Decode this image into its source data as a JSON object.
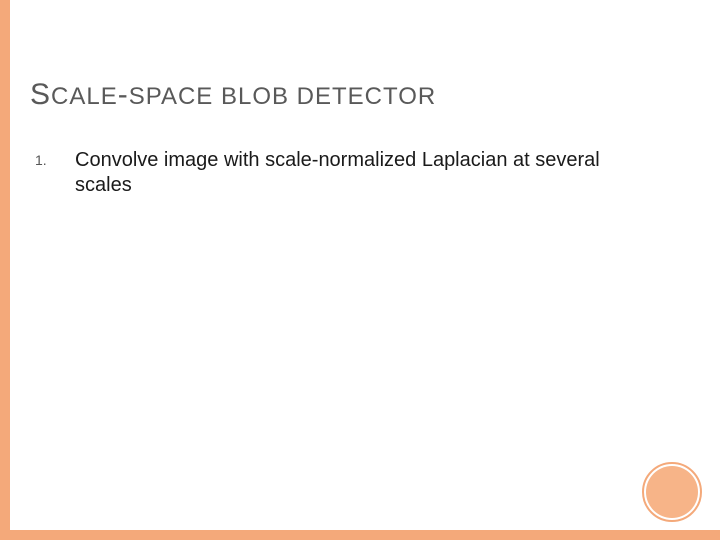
{
  "slide": {
    "title_words": [
      {
        "lead": "S",
        "rest": "CALE"
      },
      {
        "lead": "-",
        "rest": ""
      },
      {
        "lead": "",
        "rest": "SPACE BLOB DETECTOR"
      }
    ],
    "title_text_big": "S-",
    "title_full": "SCALE-SPACE BLOB DETECTOR",
    "list": {
      "number": "1.",
      "text": "Convolve image with scale-normalized Laplacian at several scales"
    }
  },
  "style": {
    "accent_color": "#f4a97a",
    "accent_fill": "#f7b488",
    "title_color": "#595959",
    "body_color": "#1a1a1a",
    "background": "#ffffff",
    "title_big_fontsize": 30,
    "title_small_fontsize": 24,
    "body_fontsize": 20,
    "number_fontsize": 14
  }
}
